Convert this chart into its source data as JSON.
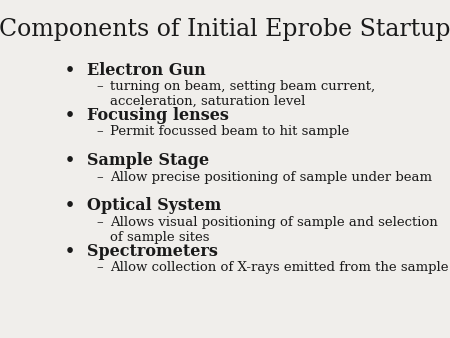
{
  "title": "Components of Initial Eprobe Startup",
  "background_color": "#f0eeeb",
  "title_fontsize": 17,
  "title_font": "serif",
  "title_color": "#1a1a1a",
  "bullet_items": [
    {
      "header": "Electron Gun",
      "sub": "turning on beam, setting beam current, acceleration, saturation level"
    },
    {
      "header": "Focusing lenses",
      "sub": "Permit focussed beam to hit sample"
    },
    {
      "header": "Sample Stage",
      "sub": "Allow precise positioning of sample under beam"
    },
    {
      "header": "Optical System",
      "sub": "Allows visual positioning of sample and selection of sample sites"
    },
    {
      "header": "Spectrometers",
      "sub": "Allow collection of X-rays emitted from the sample"
    }
  ],
  "header_fontsize": 11.5,
  "sub_fontsize": 9.5,
  "header_color": "#1a1a1a",
  "sub_color": "#1a1a1a",
  "bullet_char": "•",
  "dash_char": "–"
}
